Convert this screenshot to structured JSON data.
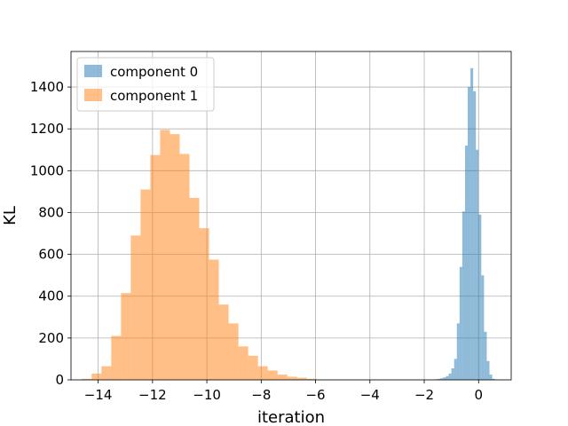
{
  "chart_data": {
    "type": "histogram",
    "title": "",
    "xlabel": "iteration",
    "ylabel": "KL",
    "xlim": [
      -15.0,
      1.2
    ],
    "ylim": [
      0,
      1570
    ],
    "xticks": [
      -14,
      -12,
      -10,
      -8,
      -6,
      -4,
      -2,
      0
    ],
    "yticks": [
      0,
      200,
      400,
      600,
      800,
      1000,
      1200,
      1400
    ],
    "grid": true,
    "legend_position": "top-left",
    "series": [
      {
        "name": "component 0",
        "color": "#1f77b4",
        "alpha": 0.5,
        "bin_width": 0.1,
        "bins": [
          {
            "x0": -1.6,
            "count": 3
          },
          {
            "x0": -1.5,
            "count": 5
          },
          {
            "x0": -1.4,
            "count": 8
          },
          {
            "x0": -1.3,
            "count": 12
          },
          {
            "x0": -1.2,
            "count": 18
          },
          {
            "x0": -1.1,
            "count": 30
          },
          {
            "x0": -1.0,
            "count": 55
          },
          {
            "x0": -0.9,
            "count": 100
          },
          {
            "x0": -0.8,
            "count": 270
          },
          {
            "x0": -0.7,
            "count": 540
          },
          {
            "x0": -0.6,
            "count": 805
          },
          {
            "x0": -0.5,
            "count": 1120
          },
          {
            "x0": -0.4,
            "count": 1400
          },
          {
            "x0": -0.3,
            "count": 1490
          },
          {
            "x0": -0.2,
            "count": 1380
          },
          {
            "x0": -0.1,
            "count": 1100
          },
          {
            "x0": 0.0,
            "count": 790
          },
          {
            "x0": 0.1,
            "count": 500
          },
          {
            "x0": 0.2,
            "count": 230
          },
          {
            "x0": 0.3,
            "count": 90
          },
          {
            "x0": 0.4,
            "count": 25
          },
          {
            "x0": 0.5,
            "count": 5
          }
        ]
      },
      {
        "name": "component 1",
        "color": "#ff7f0e",
        "alpha": 0.5,
        "bin_width": 0.36,
        "bins": [
          {
            "x0": -14.6,
            "count": 5
          },
          {
            "x0": -14.24,
            "count": 30
          },
          {
            "x0": -13.88,
            "count": 65
          },
          {
            "x0": -13.52,
            "count": 210
          },
          {
            "x0": -13.16,
            "count": 415
          },
          {
            "x0": -12.8,
            "count": 690
          },
          {
            "x0": -12.44,
            "count": 910
          },
          {
            "x0": -12.08,
            "count": 1075
          },
          {
            "x0": -11.72,
            "count": 1195
          },
          {
            "x0": -11.36,
            "count": 1175
          },
          {
            "x0": -11.0,
            "count": 1080
          },
          {
            "x0": -10.64,
            "count": 870
          },
          {
            "x0": -10.28,
            "count": 725
          },
          {
            "x0": -9.92,
            "count": 575
          },
          {
            "x0": -9.56,
            "count": 360
          },
          {
            "x0": -9.2,
            "count": 270
          },
          {
            "x0": -8.84,
            "count": 160
          },
          {
            "x0": -8.48,
            "count": 115
          },
          {
            "x0": -8.12,
            "count": 65
          },
          {
            "x0": -7.76,
            "count": 45
          },
          {
            "x0": -7.4,
            "count": 25
          },
          {
            "x0": -7.04,
            "count": 15
          },
          {
            "x0": -6.68,
            "count": 10
          },
          {
            "x0": -6.32,
            "count": 5
          }
        ]
      }
    ]
  }
}
